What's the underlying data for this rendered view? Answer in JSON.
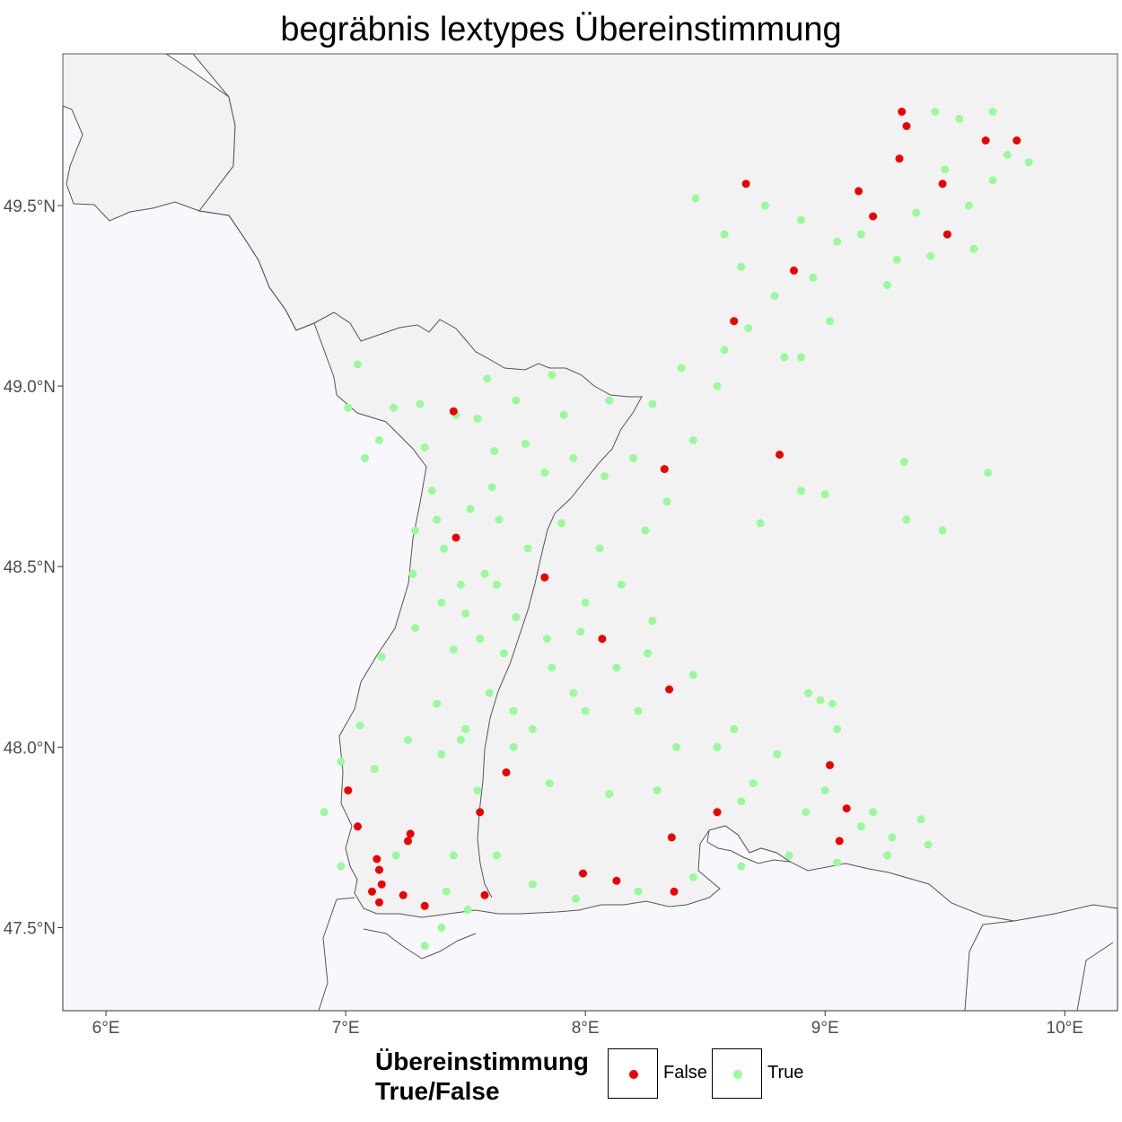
{
  "title": "begräbnis lextypes Übereinstimmung",
  "legend": {
    "title_line1": "Übereinstimmung",
    "title_line2": "True/False",
    "entries": [
      {
        "label": "False",
        "color": "#ee0000"
      },
      {
        "label": "True",
        "color": "#98fb98"
      }
    ]
  },
  "colors": {
    "panel_background": "#f8f8fc",
    "other_region_fill": "#f2f2f2",
    "border_line": "#555555",
    "false_point": "#ee0000",
    "true_point": "#98fb98"
  },
  "axes": {
    "x_ticks": [
      "6°E",
      "7°E",
      "8°E",
      "9°E",
      "10°E"
    ],
    "y_ticks": [
      "49.5°N",
      "49.0°N",
      "48.5°N",
      "48.0°N",
      "47.5°N"
    ],
    "x_range_lon": [
      5.82,
      10.22
    ],
    "y_range_lat": [
      47.27,
      49.92
    ],
    "grid": false
  },
  "chart_data": {
    "type": "scatter",
    "xlabel": "",
    "ylabel": "",
    "series": [
      {
        "name": "False",
        "color": "#ee0000",
        "points": [
          [
            9.32,
            49.76
          ],
          [
            9.34,
            49.72
          ],
          [
            9.67,
            49.68
          ],
          [
            9.8,
            49.68
          ],
          [
            9.31,
            49.63
          ],
          [
            9.49,
            49.56
          ],
          [
            8.67,
            49.56
          ],
          [
            9.14,
            49.54
          ],
          [
            9.2,
            49.47
          ],
          [
            9.51,
            49.42
          ],
          [
            8.87,
            49.32
          ],
          [
            8.62,
            49.18
          ],
          [
            7.45,
            48.93
          ],
          [
            8.81,
            48.81
          ],
          [
            8.33,
            48.77
          ],
          [
            7.46,
            48.58
          ],
          [
            7.83,
            48.47
          ],
          [
            8.07,
            48.3
          ],
          [
            8.35,
            48.16
          ],
          [
            9.02,
            47.95
          ],
          [
            7.67,
            47.93
          ],
          [
            7.01,
            47.88
          ],
          [
            9.09,
            47.83
          ],
          [
            7.56,
            47.82
          ],
          [
            8.55,
            47.82
          ],
          [
            7.05,
            47.78
          ],
          [
            7.27,
            47.76
          ],
          [
            8.36,
            47.75
          ],
          [
            7.26,
            47.74
          ],
          [
            9.06,
            47.74
          ],
          [
            7.13,
            47.69
          ],
          [
            7.14,
            47.66
          ],
          [
            7.99,
            47.65
          ],
          [
            8.13,
            47.63
          ],
          [
            7.15,
            47.62
          ],
          [
            7.11,
            47.6
          ],
          [
            7.24,
            47.59
          ],
          [
            7.58,
            47.59
          ],
          [
            8.37,
            47.6
          ],
          [
            7.14,
            47.57
          ],
          [
            7.33,
            47.56
          ]
        ]
      },
      {
        "name": "True",
        "color": "#98fb98",
        "points": [
          [
            7.05,
            49.06
          ],
          [
            7.01,
            48.94
          ],
          [
            7.2,
            48.94
          ],
          [
            7.31,
            48.95
          ],
          [
            7.46,
            48.92
          ],
          [
            7.55,
            48.91
          ],
          [
            7.14,
            48.85
          ],
          [
            7.08,
            48.8
          ],
          [
            7.36,
            48.71
          ],
          [
            7.52,
            48.66
          ],
          [
            7.29,
            48.6
          ],
          [
            7.41,
            48.55
          ],
          [
            7.64,
            48.63
          ],
          [
            7.28,
            48.48
          ],
          [
            7.4,
            48.4
          ],
          [
            7.29,
            48.33
          ],
          [
            7.45,
            48.27
          ],
          [
            7.15,
            48.25
          ],
          [
            7.38,
            48.12
          ],
          [
            7.26,
            48.02
          ],
          [
            7.06,
            48.06
          ],
          [
            7.12,
            47.94
          ],
          [
            6.98,
            47.96
          ],
          [
            6.91,
            47.82
          ],
          [
            6.98,
            47.67
          ],
          [
            7.21,
            47.7
          ],
          [
            7.45,
            47.7
          ],
          [
            7.42,
            47.6
          ],
          [
            7.4,
            47.5
          ],
          [
            7.33,
            47.45
          ],
          [
            7.51,
            47.55
          ],
          [
            7.63,
            47.7
          ],
          [
            7.78,
            47.62
          ],
          [
            7.96,
            47.58
          ],
          [
            8.22,
            47.6
          ],
          [
            8.45,
            47.64
          ],
          [
            8.65,
            47.67
          ],
          [
            8.85,
            47.7
          ],
          [
            9.05,
            47.68
          ],
          [
            9.26,
            47.7
          ],
          [
            9.43,
            47.73
          ],
          [
            9.4,
            47.8
          ],
          [
            9.2,
            47.82
          ],
          [
            9.0,
            47.88
          ],
          [
            9.05,
            48.05
          ],
          [
            8.8,
            47.98
          ],
          [
            8.55,
            48.0
          ],
          [
            8.38,
            48.0
          ],
          [
            8.22,
            48.1
          ],
          [
            8.0,
            48.1
          ],
          [
            7.78,
            48.05
          ],
          [
            7.6,
            48.15
          ],
          [
            7.56,
            48.3
          ],
          [
            7.63,
            48.45
          ],
          [
            7.76,
            48.55
          ],
          [
            7.9,
            48.62
          ],
          [
            8.06,
            48.55
          ],
          [
            8.15,
            48.45
          ],
          [
            8.28,
            48.35
          ],
          [
            8.13,
            48.22
          ],
          [
            7.98,
            48.32
          ],
          [
            7.86,
            48.22
          ],
          [
            7.71,
            48.36
          ],
          [
            7.61,
            48.72
          ],
          [
            7.75,
            48.84
          ],
          [
            7.91,
            48.92
          ],
          [
            8.1,
            48.96
          ],
          [
            8.28,
            48.95
          ],
          [
            8.2,
            48.8
          ],
          [
            8.08,
            48.75
          ],
          [
            7.95,
            48.8
          ],
          [
            7.83,
            48.76
          ],
          [
            7.71,
            48.96
          ],
          [
            7.59,
            49.02
          ],
          [
            7.86,
            49.03
          ],
          [
            8.4,
            49.05
          ],
          [
            8.55,
            49.0
          ],
          [
            8.45,
            48.85
          ],
          [
            8.34,
            48.68
          ],
          [
            8.25,
            48.6
          ],
          [
            8.58,
            49.1
          ],
          [
            8.68,
            49.16
          ],
          [
            8.79,
            49.25
          ],
          [
            8.95,
            49.3
          ],
          [
            9.05,
            49.4
          ],
          [
            8.9,
            49.46
          ],
          [
            8.75,
            49.5
          ],
          [
            8.58,
            49.42
          ],
          [
            8.46,
            49.52
          ],
          [
            8.65,
            49.33
          ],
          [
            8.83,
            49.08
          ],
          [
            9.15,
            49.42
          ],
          [
            9.3,
            49.35
          ],
          [
            9.38,
            49.48
          ],
          [
            9.5,
            49.6
          ],
          [
            9.6,
            49.5
          ],
          [
            9.7,
            49.57
          ],
          [
            9.76,
            49.64
          ],
          [
            9.85,
            49.62
          ],
          [
            9.56,
            49.74
          ],
          [
            9.46,
            49.76
          ],
          [
            9.7,
            49.76
          ],
          [
            9.62,
            49.38
          ],
          [
            9.44,
            49.36
          ],
          [
            9.26,
            49.28
          ],
          [
            9.02,
            49.18
          ],
          [
            8.9,
            49.08
          ],
          [
            8.73,
            48.62
          ],
          [
            8.9,
            48.71
          ],
          [
            9.0,
            48.7
          ],
          [
            9.33,
            48.79
          ],
          [
            9.34,
            48.63
          ],
          [
            9.49,
            48.6
          ],
          [
            9.68,
            48.76
          ],
          [
            8.93,
            48.15
          ],
          [
            8.98,
            48.13
          ],
          [
            9.03,
            48.12
          ],
          [
            7.4,
            47.98
          ],
          [
            7.85,
            47.9
          ],
          [
            8.1,
            47.87
          ],
          [
            8.3,
            47.88
          ],
          [
            8.65,
            47.85
          ],
          [
            8.92,
            47.82
          ],
          [
            9.28,
            47.75
          ],
          [
            9.15,
            47.78
          ],
          [
            7.7,
            48.0
          ],
          [
            7.5,
            48.05
          ],
          [
            7.95,
            48.15
          ],
          [
            8.45,
            48.2
          ],
          [
            8.62,
            48.05
          ],
          [
            8.7,
            47.9
          ],
          [
            8.26,
            48.26
          ],
          [
            8.0,
            48.4
          ],
          [
            7.84,
            48.3
          ],
          [
            7.7,
            48.1
          ],
          [
            7.55,
            47.88
          ],
          [
            7.48,
            48.02
          ],
          [
            7.48,
            48.45
          ],
          [
            7.33,
            48.83
          ],
          [
            7.62,
            48.82
          ],
          [
            7.58,
            48.48
          ],
          [
            7.38,
            48.63
          ],
          [
            7.5,
            48.37
          ],
          [
            7.66,
            48.26
          ]
        ]
      }
    ]
  }
}
